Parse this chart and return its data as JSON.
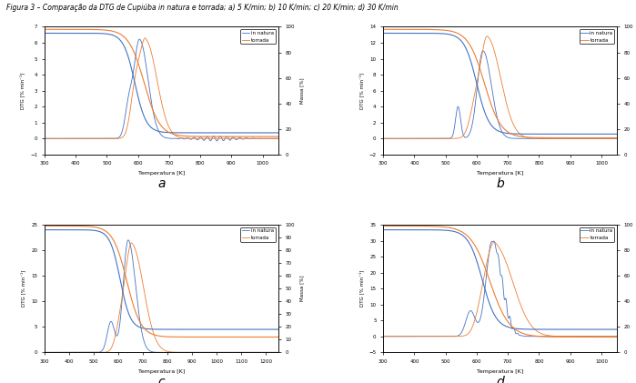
{
  "title": "Figura 3 – Comparação da DTG de Cupiúba in natura e torrada; a) 5 K/min; b) 10 K/min; c) 20 K/min; d) 30 K/min",
  "xlabel": "Temperatura [K]",
  "ylabel_left": "DTG [% min⁻¹]",
  "ylabel_right": "Massa [%]",
  "legend_in_natura": "in natura",
  "legend_torrada": "torrada",
  "color_in_natura": "#4472C4",
  "color_torrada": "#ED7D31",
  "panels": [
    {
      "label": "a",
      "xlim": [
        300,
        1050
      ],
      "ylim_left": [
        -1,
        7
      ],
      "ylim_right": [
        0,
        100
      ],
      "yticks_left": [
        -1,
        0,
        1,
        2,
        3,
        4,
        5,
        6,
        7
      ],
      "yticks_right": [
        0,
        20,
        40,
        60,
        80,
        100
      ],
      "xticks": [
        300,
        400,
        500,
        600,
        700,
        800,
        900,
        1000
      ]
    },
    {
      "label": "b",
      "xlim": [
        300,
        1050
      ],
      "ylim_left": [
        -2,
        14
      ],
      "ylim_right": [
        0,
        100
      ],
      "yticks_left": [
        -2,
        0,
        2,
        4,
        6,
        8,
        10,
        12,
        14
      ],
      "yticks_right": [
        0,
        20,
        40,
        60,
        80,
        100
      ],
      "xticks": [
        300,
        400,
        500,
        600,
        700,
        800,
        900,
        1000
      ]
    },
    {
      "label": "c",
      "xlim": [
        300,
        1250
      ],
      "ylim_left": [
        0,
        25
      ],
      "ylim_right": [
        0,
        100
      ],
      "yticks_left": [
        0,
        5,
        10,
        15,
        20,
        25
      ],
      "yticks_right": [
        0,
        10,
        20,
        30,
        40,
        50,
        60,
        70,
        80,
        90,
        100
      ],
      "xticks": [
        300,
        400,
        500,
        600,
        700,
        800,
        900,
        1000,
        1100,
        1200
      ]
    },
    {
      "label": "d",
      "xlim": [
        300,
        1050
      ],
      "ylim_left": [
        -5,
        35
      ],
      "ylim_right": [
        0,
        100
      ],
      "yticks_left": [
        -5,
        0,
        5,
        10,
        15,
        20,
        25,
        30,
        35
      ],
      "yticks_right": [
        0,
        20,
        40,
        60,
        80,
        100
      ],
      "xticks": [
        300,
        400,
        500,
        600,
        700,
        800,
        900,
        1000
      ]
    }
  ]
}
